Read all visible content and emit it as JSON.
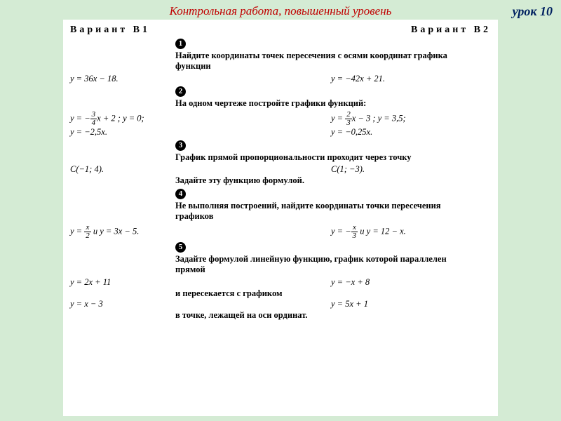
{
  "colors": {
    "page_bg": "#d4ebd4",
    "sheet_bg": "#ffffff",
    "title_color": "#c00000",
    "lesson_color": "#002060",
    "text_color": "#000000"
  },
  "header": {
    "title": "Контрольная работа, повышенный уровень",
    "lesson": "урок 10"
  },
  "variants": {
    "left": "Вариант В1",
    "right": "Вариант В2"
  },
  "t1": {
    "num": "1",
    "prompt": "Найдите координаты точек пересечения с осями координат графика функции",
    "left": "y = 36x − 18.",
    "right": "y = −42x + 21."
  },
  "t2": {
    "num": "2",
    "prompt": "На одном чертеже постройте графики функций:",
    "left_line1_a": "y = −",
    "left_line1_b": "x + 2 ; y = 0;",
    "left_frac_n": "3",
    "left_frac_d": "4",
    "left_line2": "y = −2,5x.",
    "right_line1_a": "y = ",
    "right_line1_b": "x − 3 ; y = 3,5;",
    "right_frac_n": "2",
    "right_frac_d": "3",
    "right_line2": "y = −0,25x."
  },
  "t3": {
    "num": "3",
    "prompt": "График прямой пропорциональности проходит через точку",
    "left": "C(−1; 4).",
    "right": "C(1; −3).",
    "tail": "Задайте эту функцию формулой."
  },
  "t4": {
    "num": "4",
    "prompt": "Не выполняя построений, найдите координаты точки пересечения графиков",
    "left_a": "y = ",
    "left_b": "  и  y = 3x − 5.",
    "left_frac_n": "x",
    "left_frac_d": "2",
    "right_a": "y = −",
    "right_b": "  и  y = 12 − x.",
    "right_frac_n": "x",
    "right_frac_d": "3"
  },
  "t5": {
    "num": "5",
    "prompt": "Задайте формулой линейную функцию, график которой параллелен прямой",
    "left1": "y = 2x + 11",
    "right1": "y = −x + 8",
    "mid": "и пересекается с графиком",
    "left2": "y = x − 3",
    "right2": "y = 5x + 1",
    "tail": "в точке, лежащей на оси ординат."
  }
}
